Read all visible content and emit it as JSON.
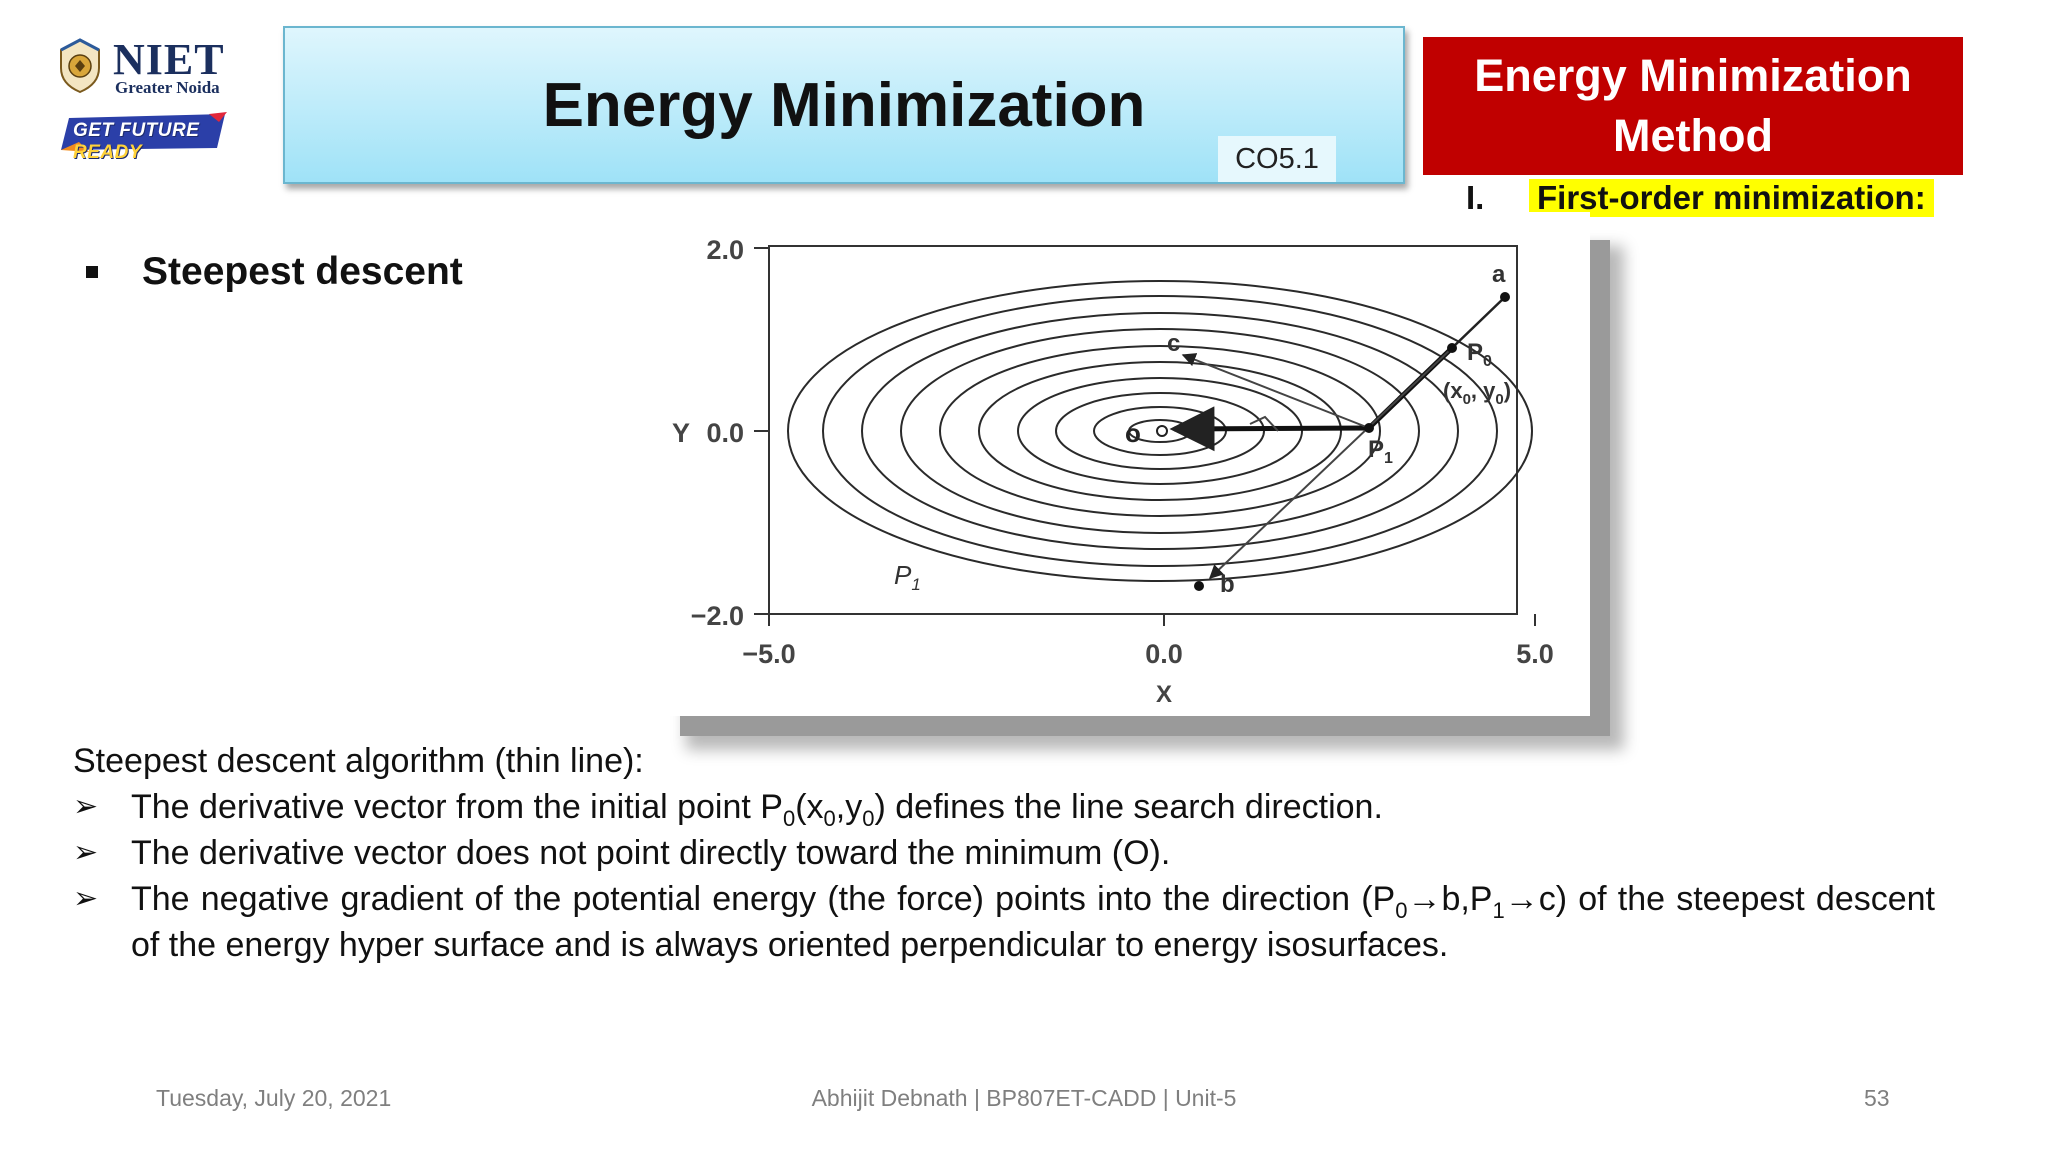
{
  "logo": {
    "name": "NIET",
    "city": "Greater Noida",
    "tagline_part1": "GET FUTURE",
    "tagline_part2": "READY"
  },
  "header": {
    "title": "Energy Minimization",
    "co_tag": "CO5.1"
  },
  "side_box": {
    "line1": "Energy Minimization",
    "line2": "Method"
  },
  "subhead": {
    "numeral": "I.",
    "label": "First-order minimization:"
  },
  "bullet": "Steepest descent",
  "figure": {
    "y_axis_label": "Y",
    "x_axis_label": "X",
    "y_ticks": [
      "2.0",
      "0.0",
      "−2.0"
    ],
    "x_ticks": [
      "−5.0",
      "0.0",
      "5.0"
    ],
    "point_labels": {
      "a": "a",
      "b": "b",
      "c": "c",
      "o": "o",
      "p0": "P",
      "p0_sub": "0",
      "p0_coords": "(x",
      "p0_coords_sub": "0",
      "p0_coords_mid": ", y",
      "p0_coords_end": ")",
      "p1": "P",
      "p1_sub": "1",
      "p1_italic": "P",
      "p1_italic_sub": "1"
    }
  },
  "body": {
    "heading": "Steepest descent algorithm (thin line):",
    "point1_a": "The derivative vector from the initial point P",
    "point1_sub0": "0",
    "point1_b": "(x",
    "point1_sub1": "0",
    "point1_c": ",y",
    "point1_sub2": "0",
    "point1_d": ") defines the line search direction.",
    "point2": "The derivative vector does not point directly toward the minimum (O).",
    "point3_a": "The negative gradient of the potential energy (the force) points into the direction (P",
    "point3_sub0": "0",
    "point3_b": "→b,P",
    "point3_sub1": "1",
    "point3_c": "→c) of the steepest descent of the energy hyper surface and is always oriented perpendicular to energy isosurfaces."
  },
  "footer": {
    "date": "Tuesday, July 20, 2021",
    "center": "Abhijit Debnath | BP807ET-CADD | Unit-5",
    "page": "53"
  },
  "colors": {
    "title_gradient_top": "#dff6fd",
    "title_gradient_bottom": "#9fe2f7",
    "method_red": "#c00000",
    "highlight_yellow": "#ffff00",
    "logo_navy": "#1b2f5e"
  }
}
